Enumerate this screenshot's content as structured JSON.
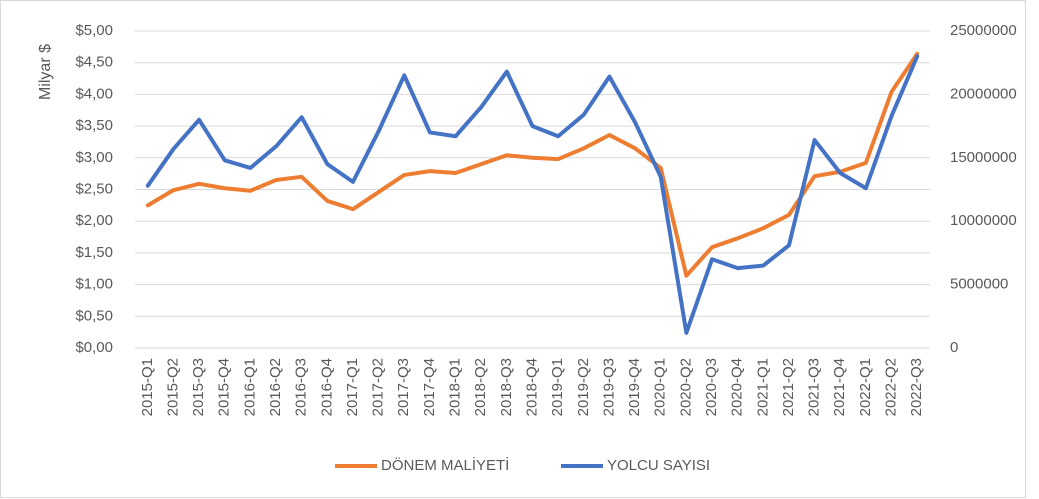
{
  "chart_data": {
    "type": "line",
    "ylabel": "Milyar $",
    "categories": [
      "2015-Q1",
      "2015-Q2",
      "2015-Q3",
      "2015-Q4",
      "2016-Q1",
      "2016-Q2",
      "2016-Q3",
      "2016-Q4",
      "2017-Q1",
      "2017-Q2",
      "2017-Q3",
      "2017-Q4",
      "2018-Q1",
      "2018-Q2",
      "2018-Q3",
      "2018-Q4",
      "2019-Q1",
      "2019-Q2",
      "2019-Q3",
      "2019-Q4",
      "2020-Q1",
      "2020-Q2",
      "2020-Q3",
      "2020-Q4",
      "2021-Q1",
      "2021-Q2",
      "2021-Q3",
      "2021-Q4",
      "2022-Q1",
      "2022-Q2",
      "2022-Q3"
    ],
    "series": [
      {
        "name": "DÖNEM MALİYETİ",
        "color": "#ed7d31",
        "values": [
          2.25,
          2.49,
          2.59,
          2.52,
          2.48,
          2.65,
          2.7,
          2.32,
          2.19,
          2.46,
          2.73,
          2.79,
          2.76,
          2.9,
          3.04,
          3.0,
          2.98,
          3.15,
          3.36,
          3.15,
          2.84,
          1.14,
          1.59,
          1.73,
          1.89,
          2.1,
          2.71,
          2.78,
          2.92,
          4.04,
          4.64
        ]
      },
      {
        "name": "YOLCU SAYISI",
        "color": "#4472c4",
        "axis": "y2",
        "values": [
          12800000,
          15700000,
          18000000,
          14800000,
          14200000,
          15900000,
          18200000,
          14500000,
          13100000,
          17100000,
          21500000,
          17000000,
          16700000,
          19000000,
          21800000,
          17500000,
          16700000,
          18400000,
          21400000,
          17800000,
          13500000,
          1200000,
          7000000,
          6300000,
          6500000,
          8100000,
          16400000,
          13800000,
          12600000,
          18300000,
          23000000
        ]
      }
    ],
    "ylim": [
      0,
      5
    ],
    "yticks": [
      {
        "value": 0,
        "label": "$0,00"
      },
      {
        "value": 0.5,
        "label": "$0,50"
      },
      {
        "value": 1,
        "label": "$1,00"
      },
      {
        "value": 1.5,
        "label": "$1,50"
      },
      {
        "value": 2,
        "label": "$2,00"
      },
      {
        "value": 2.5,
        "label": "$2,50"
      },
      {
        "value": 3,
        "label": "$3,00"
      },
      {
        "value": 3.5,
        "label": "$3,50"
      },
      {
        "value": 4,
        "label": "$4,00"
      },
      {
        "value": 4.5,
        "label": "$4,50"
      },
      {
        "value": 5,
        "label": "$5,00"
      }
    ],
    "y2lim": [
      0,
      25000000
    ],
    "y2ticks": [
      0,
      5000000,
      10000000,
      15000000,
      20000000,
      25000000
    ],
    "grid": true,
    "legend": "bottom"
  }
}
